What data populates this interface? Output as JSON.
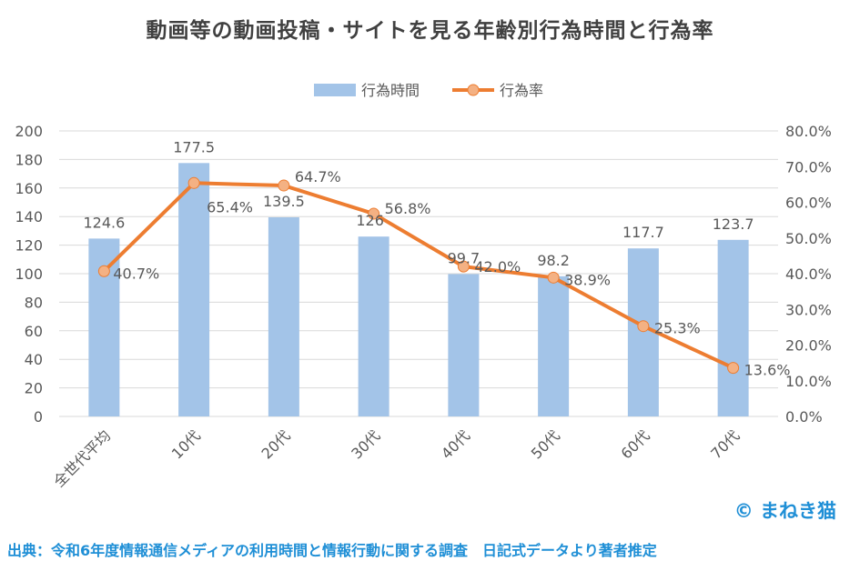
{
  "watermark": "© まねき猫",
  "source": "出典：令和6年度情報通信メディアの利用時間と情報行動に関する調査　日記式データより著者推定",
  "colors": {
    "bar": "#a3c4e8",
    "line": "#ed7d31",
    "marker": "#f4b183",
    "axis_text": "#595959",
    "grid": "#d9d9d9"
  },
  "chart_data": {
    "type": "bar",
    "title": "動画等の動画投稿・サイトを見る年齢別行為時間と行為率",
    "categories": [
      "全世代平均",
      "10代",
      "20代",
      "30代",
      "40代",
      "50代",
      "60代",
      "70代"
    ],
    "series": [
      {
        "name": "行為時間",
        "type": "bar",
        "axis": "left",
        "values": [
          124.6,
          177.5,
          139.5,
          126,
          99.7,
          98.2,
          117.7,
          123.7
        ],
        "labels": [
          "124.6",
          "177.5",
          "139.5",
          "126",
          "99.7",
          "98.2",
          "117.7",
          "123.7"
        ]
      },
      {
        "name": "行為率",
        "type": "line",
        "axis": "right",
        "values": [
          40.7,
          65.4,
          64.7,
          56.8,
          42.0,
          38.9,
          25.3,
          13.6
        ],
        "labels": [
          "40.7%",
          "65.4%",
          "64.7%",
          "56.8%",
          "42.0%",
          "38.9%",
          "25.3%",
          "13.6%"
        ]
      }
    ],
    "y_left": {
      "min": 0,
      "max": 200,
      "step": 20,
      "ticks": [
        "0",
        "20",
        "40",
        "60",
        "80",
        "100",
        "120",
        "140",
        "160",
        "180",
        "200"
      ]
    },
    "y_right": {
      "min": 0,
      "max": 80,
      "step": 10,
      "ticks": [
        "0.0%",
        "10.0%",
        "20.0%",
        "30.0%",
        "40.0%",
        "50.0%",
        "60.0%",
        "70.0%",
        "80.0%"
      ]
    },
    "grid": true,
    "legend_position": "top-center"
  }
}
